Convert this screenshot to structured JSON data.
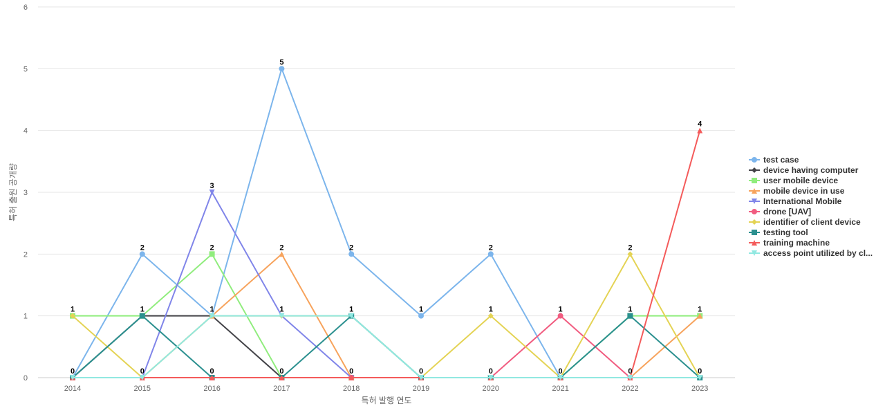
{
  "chart_data": {
    "type": "line",
    "title": "",
    "xlabel": "특허 발행 연도",
    "ylabel": "특허 출원 공개량",
    "x": [
      "2014",
      "2015",
      "2016",
      "2017",
      "2018",
      "2019",
      "2020",
      "2021",
      "2022",
      "2023"
    ],
    "ylim": [
      0,
      6
    ],
    "yticks": [
      0,
      1,
      2,
      3,
      4,
      5,
      6
    ],
    "grid": true,
    "legend": "right",
    "series": [
      {
        "name": "test case",
        "color": "#7cb5ec",
        "marker": "circle",
        "values": [
          0,
          2,
          1,
          5,
          2,
          1,
          2,
          0,
          0,
          0
        ]
      },
      {
        "name": "device having computer",
        "color": "#434348",
        "marker": "diamond",
        "values": [
          0,
          1,
          1,
          0,
          0,
          0,
          0,
          0,
          0,
          0
        ]
      },
      {
        "name": "user mobile device",
        "color": "#90ed7d",
        "marker": "square",
        "values": [
          1,
          1,
          2,
          0,
          0,
          0,
          0,
          0,
          1,
          1
        ]
      },
      {
        "name": "mobile device in use",
        "color": "#f7a35c",
        "marker": "triangle",
        "values": [
          0,
          0,
          1,
          2,
          0,
          0,
          0,
          0,
          0,
          1
        ]
      },
      {
        "name": "International Mobile",
        "color": "#8085e9",
        "marker": "triangle-down",
        "values": [
          0,
          0,
          3,
          1,
          0,
          0,
          0,
          0,
          0,
          0
        ]
      },
      {
        "name": "drone [UAV]",
        "color": "#f15c80",
        "marker": "circle",
        "values": [
          0,
          0,
          0,
          0,
          0,
          0,
          0,
          1,
          0,
          0
        ]
      },
      {
        "name": "identifier of client device",
        "color": "#e4d354",
        "marker": "diamond",
        "values": [
          1,
          0,
          1,
          1,
          1,
          0,
          1,
          0,
          2,
          0
        ]
      },
      {
        "name": "testing tool",
        "color": "#2b908f",
        "marker": "square",
        "values": [
          0,
          1,
          0,
          0,
          1,
          0,
          0,
          0,
          1,
          0
        ]
      },
      {
        "name": "training machine",
        "color": "#f45b5b",
        "marker": "triangle",
        "values": [
          0,
          0,
          0,
          0,
          0,
          0,
          0,
          0,
          0,
          4
        ]
      },
      {
        "name": "access point utilized by cl...",
        "color": "#91e8e1",
        "marker": "triangle-down",
        "values": [
          0,
          0,
          1,
          1,
          1,
          0,
          0,
          0,
          0,
          0
        ]
      }
    ],
    "data_labels": [
      {
        "x": "2014",
        "values": [
          1,
          0
        ]
      },
      {
        "x": "2015",
        "values": [
          2,
          1,
          0
        ]
      },
      {
        "x": "2016",
        "values": [
          3,
          2,
          1,
          0
        ]
      },
      {
        "x": "2017",
        "values": [
          5,
          2,
          1,
          0
        ]
      },
      {
        "x": "2018",
        "values": [
          2,
          1,
          0
        ]
      },
      {
        "x": "2019",
        "values": [
          1,
          0
        ]
      },
      {
        "x": "2020",
        "values": [
          2,
          1,
          0
        ]
      },
      {
        "x": "2021",
        "values": [
          1,
          0
        ]
      },
      {
        "x": "2022",
        "values": [
          2,
          1,
          0
        ]
      },
      {
        "x": "2023",
        "values": [
          4,
          1,
          0
        ]
      }
    ]
  }
}
